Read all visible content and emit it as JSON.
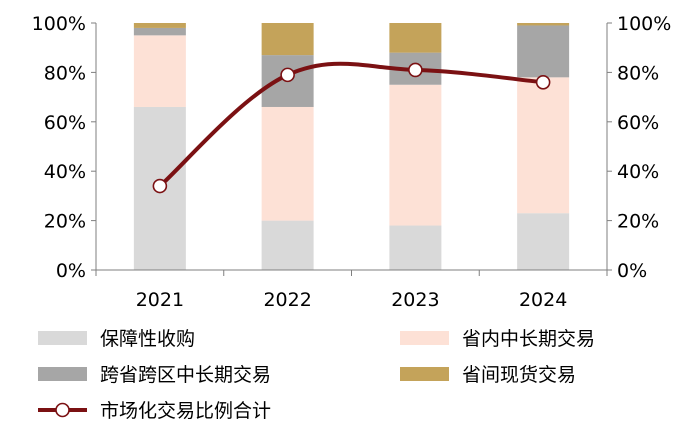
{
  "chart_data": {
    "type": "bar",
    "stacked": true,
    "categories": [
      "2021",
      "2022",
      "2023",
      "2024"
    ],
    "ylim": [
      0,
      100
    ],
    "y_ticks": [
      "0%",
      "20%",
      "40%",
      "60%",
      "80%",
      "100%"
    ],
    "y2_ticks": [
      "0%",
      "20%",
      "40%",
      "60%",
      "80%",
      "100%"
    ],
    "series": [
      {
        "name": "保障性收购",
        "kind": "bar",
        "color": "#d9d9d9",
        "values": [
          66,
          20,
          18,
          23
        ]
      },
      {
        "name": "省内中长期交易",
        "kind": "bar",
        "color": "#fde1d6",
        "values": [
          29,
          46,
          57,
          55
        ]
      },
      {
        "name": "跨省跨区中长期交易",
        "kind": "bar",
        "color": "#a6a6a6",
        "values": [
          3,
          21,
          13,
          21
        ]
      },
      {
        "name": "省间现货交易",
        "kind": "bar",
        "color": "#c4a35a",
        "values": [
          2,
          13,
          12,
          1
        ]
      },
      {
        "name": "市场化交易比例合计",
        "kind": "line",
        "color": "#7b1113",
        "values": [
          34,
          79,
          81,
          76
        ]
      }
    ],
    "legend": [
      {
        "name": "保障性收购",
        "symbol": "box",
        "color": "#d9d9d9"
      },
      {
        "name": "省内中长期交易",
        "symbol": "box",
        "color": "#fde1d6"
      },
      {
        "name": "跨省跨区中长期交易",
        "symbol": "box",
        "color": "#a6a6a6"
      },
      {
        "name": "省间现货交易",
        "symbol": "box",
        "color": "#c4a35a"
      },
      {
        "name": "市场化交易比例合计",
        "symbol": "line-marker",
        "color": "#7b1113"
      }
    ],
    "legend_placement": "bottom",
    "grid": false
  }
}
